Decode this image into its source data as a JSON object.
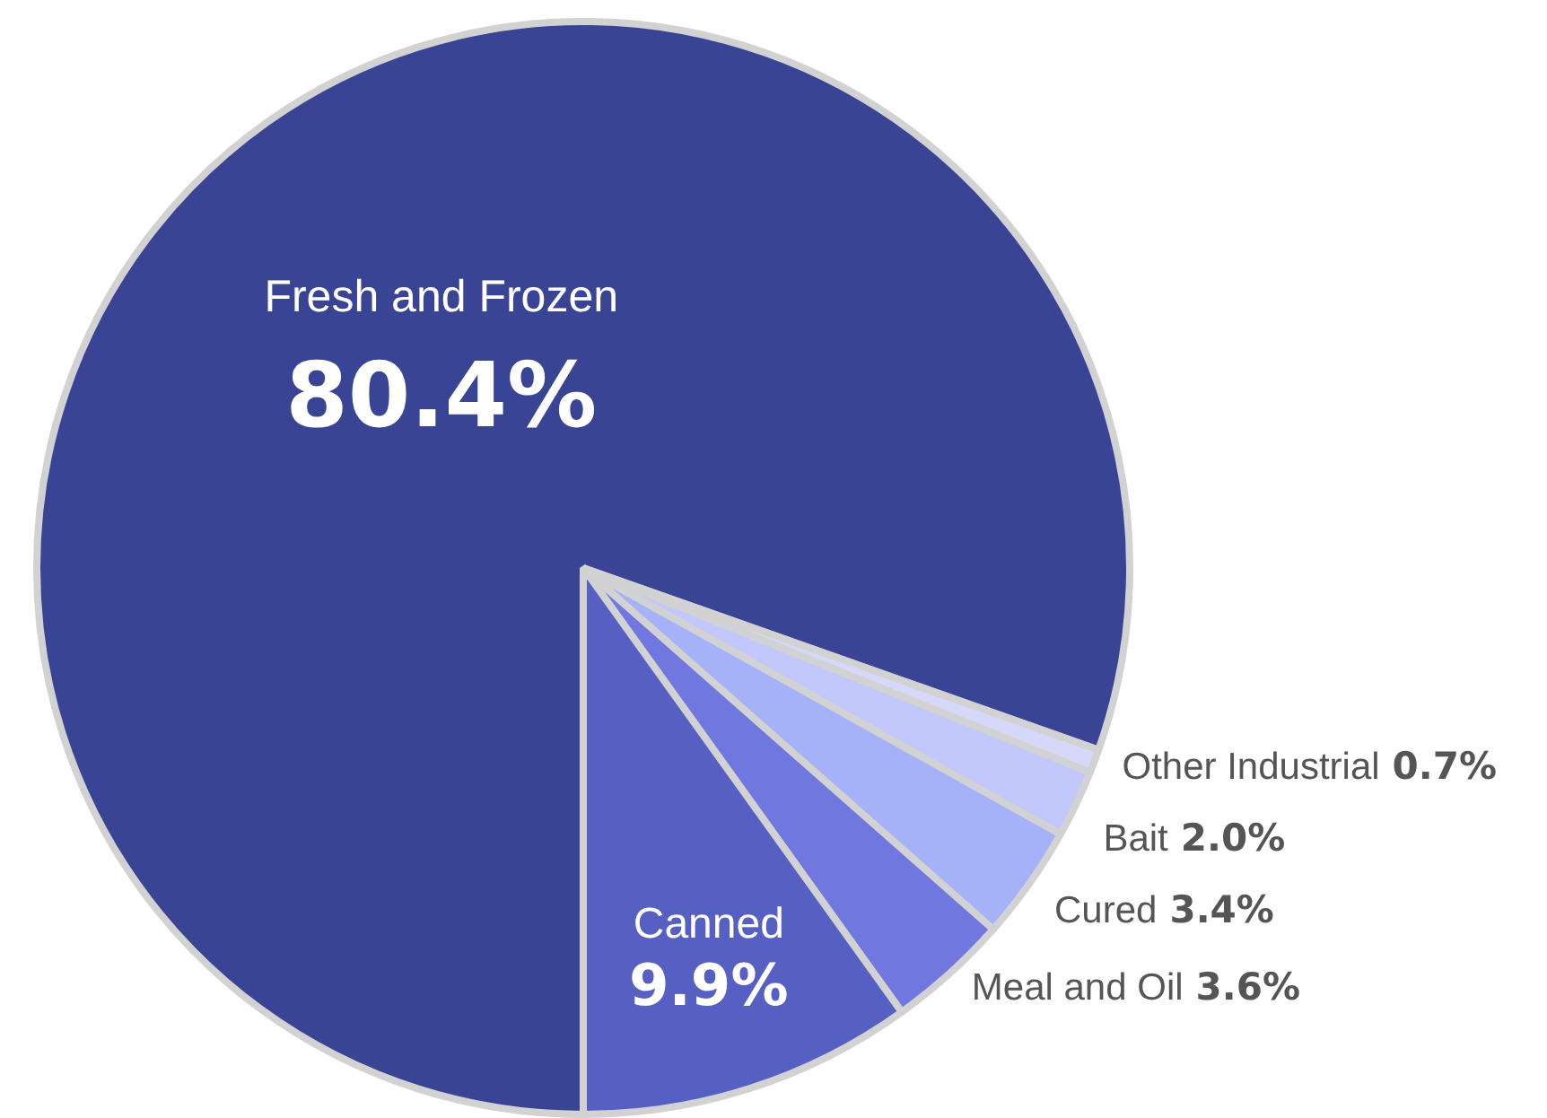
{
  "chart_data": {
    "type": "pie",
    "categories": [
      "Fresh and Frozen",
      "Other Industrial",
      "Bait",
      "Cured",
      "Meal and Oil",
      "Canned"
    ],
    "values": [
      80.4,
      0.7,
      2.0,
      3.4,
      3.6,
      9.9
    ],
    "value_labels": [
      "80.4%",
      "0.7%",
      "2.0%",
      "3.4%",
      "3.6%",
      "9.9%"
    ],
    "colors": [
      "#3a4494",
      "#d6d8fa",
      "#c2c8fc",
      "#a6b2f8",
      "#7078e0",
      "#5660c2"
    ],
    "legend": false
  }
}
